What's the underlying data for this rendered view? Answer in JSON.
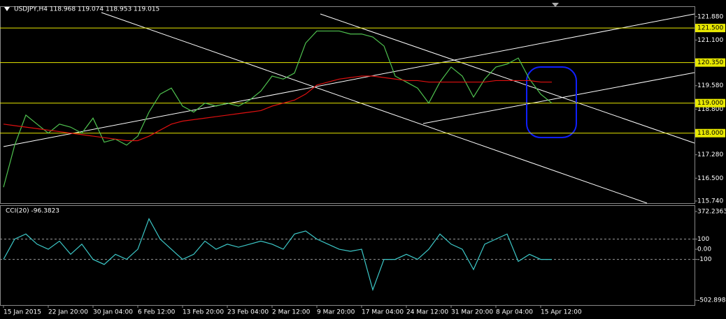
{
  "chart_data": [
    {
      "type": "line",
      "title": "USDJPY,H4  118.968 119.074 118.953 119.015",
      "categories": [
        "15 Jan 2015",
        null,
        null,
        null,
        "22 Jan 20:00",
        null,
        null,
        null,
        "30 Jan 04:00",
        null,
        null,
        null,
        "6 Feb 12:00",
        null,
        null,
        null,
        "13 Feb 20:00",
        null,
        null,
        null,
        "23 Feb 04:00",
        null,
        null,
        null,
        "2 Mar 12:00",
        null,
        null,
        null,
        "9 Mar 20:00",
        null,
        null,
        null,
        "17 Mar 04:00",
        null,
        null,
        null,
        "24 Mar 12:00",
        null,
        null,
        null,
        "31 Mar 20:00",
        null,
        null,
        null,
        "8 Apr 04:00",
        null,
        null,
        null,
        "15 Apr 12:00",
        null,
        null,
        null,
        null,
        null,
        null,
        null,
        null,
        null,
        null,
        null,
        null,
        null
      ],
      "series": [
        {
          "name": "USDJPY",
          "color": "#4fc24f",
          "values": [
            116.2,
            117.6,
            118.6,
            118.3,
            118.0,
            118.3,
            118.2,
            118.0,
            118.5,
            117.7,
            117.8,
            117.6,
            117.9,
            118.7,
            119.3,
            119.5,
            118.9,
            118.7,
            119.0,
            118.9,
            119.0,
            118.9,
            119.1,
            119.4,
            119.9,
            119.8,
            120.0,
            121.0,
            121.4,
            121.4,
            121.4,
            121.3,
            121.3,
            121.2,
            120.9,
            119.9,
            119.7,
            119.5,
            119.0,
            119.7,
            120.2,
            119.9,
            119.2,
            119.8,
            120.2,
            120.3,
            120.5,
            119.8,
            119.3,
            119.0,
            null,
            null,
            null,
            null,
            null,
            null,
            null,
            null,
            null,
            null,
            null,
            null
          ]
        },
        {
          "name": "MA",
          "color": "#e01010",
          "values": [
            118.3,
            118.25,
            118.2,
            118.15,
            118.1,
            118.05,
            118.0,
            117.95,
            117.9,
            117.85,
            117.8,
            117.75,
            117.75,
            117.9,
            118.1,
            118.3,
            118.4,
            118.45,
            118.5,
            118.55,
            118.6,
            118.65,
            118.7,
            118.75,
            118.9,
            119.0,
            119.1,
            119.3,
            119.6,
            119.7,
            119.8,
            119.85,
            119.9,
            119.9,
            119.85,
            119.8,
            119.75,
            119.75,
            119.7,
            119.7,
            119.7,
            119.7,
            119.7,
            119.7,
            119.75,
            119.75,
            119.75,
            119.75,
            119.7,
            119.7,
            null,
            null,
            null,
            null,
            null,
            null,
            null,
            null,
            null,
            null,
            null,
            null
          ]
        }
      ],
      "ylim": [
        115.67,
        122.2
      ],
      "yticks": [
        {
          "value": 121.88,
          "label": "121.880"
        },
        {
          "value": 121.1,
          "label": "121.100"
        },
        {
          "value": 119.58,
          "label": "119.580"
        },
        {
          "value": 118.8,
          "label": "118.800"
        },
        {
          "value": 117.28,
          "label": "117.280"
        },
        {
          "value": 116.5,
          "label": "116.500"
        },
        {
          "value": 115.74,
          "label": "115.740"
        }
      ],
      "levels": [
        {
          "value": 121.5,
          "label": "121.500"
        },
        {
          "value": 120.35,
          "label": "120.350"
        },
        {
          "value": 119.0,
          "label": "119.000"
        },
        {
          "value": 118.0,
          "label": "118.000"
        }
      ],
      "level_color": "#e8e800"
    },
    {
      "type": "line",
      "title": "CCI(20) -96.3823",
      "series": [
        {
          "name": "CCI",
          "color": "#3cc8c8",
          "values": [
            -100,
            100,
            150,
            50,
            0,
            80,
            -50,
            50,
            -100,
            -150,
            -50,
            -100,
            0,
            300,
            100,
            0,
            -100,
            -50,
            80,
            0,
            50,
            20,
            50,
            80,
            50,
            0,
            150,
            180,
            100,
            50,
            0,
            -20,
            0,
            -400,
            -100,
            -100,
            -50,
            -100,
            0,
            150,
            50,
            0,
            -200,
            50,
            100,
            150,
            -120,
            -50,
            -100,
            -100,
            null,
            null,
            null,
            null,
            null,
            null,
            null,
            null,
            null,
            null,
            null,
            null
          ]
        }
      ],
      "ylim": [
        -550,
        420
      ],
      "yticks": [
        372.2363,
        100,
        {
          "value": 0,
          "label": "0.00"
        },
        -100,
        -502.8983
      ],
      "dashed_levels": [
        100,
        -100
      ]
    }
  ]
}
